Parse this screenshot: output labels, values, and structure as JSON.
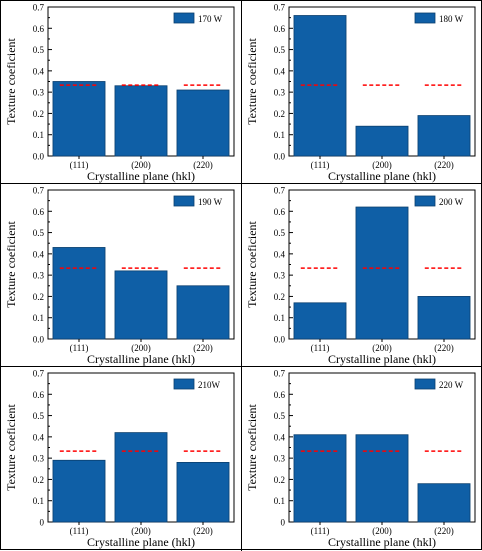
{
  "colors": {
    "bar": "#0f5fa6",
    "bar_edge": "#0a3f6e",
    "reference": "#ff0000"
  },
  "chart_data": [
    {
      "type": "bar",
      "categories": [
        "(111)",
        "(200)",
        "(220)"
      ],
      "values": [
        0.35,
        0.33,
        0.31
      ],
      "reference_value": 0.333,
      "legend": "170 W",
      "xlabel": "Crystalline plane (hkl)",
      "ylabel": "Texture coeficient",
      "ylim": [
        0,
        0.7
      ],
      "yticks": [
        "0.0",
        "0.1",
        "0.2",
        "0.3",
        "0.4",
        "0.5",
        "0.6",
        "0.7"
      ],
      "legend_position": "top-right"
    },
    {
      "type": "bar",
      "categories": [
        "(111)",
        "(200)",
        "(220)"
      ],
      "values": [
        0.66,
        0.14,
        0.19
      ],
      "reference_value": 0.333,
      "legend": "180 W",
      "xlabel": "Crystalline plane (hkl)",
      "ylabel": "Texture coeficient",
      "ylim": [
        0,
        0.7
      ],
      "yticks": [
        "0.0",
        "0.1",
        "0.2",
        "0.3",
        "0.4",
        "0.5",
        "0.6",
        "0.7"
      ],
      "legend_position": "top-right"
    },
    {
      "type": "bar",
      "categories": [
        "(111)",
        "(200)",
        "(220)"
      ],
      "values": [
        0.43,
        0.32,
        0.25
      ],
      "reference_value": 0.333,
      "legend": "190 W",
      "xlabel": "Crystalline plane (hkl)",
      "ylabel": "Texture coeficient",
      "ylim": [
        0,
        0.7
      ],
      "yticks": [
        "0.0",
        "0.1",
        "0.2",
        "0.3",
        "0.4",
        "0.5",
        "0.6",
        "0.7"
      ],
      "legend_position": "top-right"
    },
    {
      "type": "bar",
      "categories": [
        "(111)",
        "(200)",
        "(220)"
      ],
      "values": [
        0.17,
        0.62,
        0.2
      ],
      "reference_value": 0.333,
      "legend": "200 W",
      "xlabel": "Crystalline plane (hkl)",
      "ylabel": "Texture coeficient",
      "ylim": [
        0,
        0.7
      ],
      "yticks": [
        "0.0",
        "0.1",
        "0.2",
        "0.3",
        "0.4",
        "0.5",
        "0.6",
        "0.7"
      ],
      "legend_position": "top-right"
    },
    {
      "type": "bar",
      "categories": [
        "(111)",
        "(200)",
        "(220)"
      ],
      "values": [
        0.29,
        0.42,
        0.28
      ],
      "reference_value": 0.333,
      "legend": "210W",
      "xlabel": "Crystalline plane (hkl)",
      "ylabel": "Texture coeficient",
      "ylim": [
        0,
        0.7
      ],
      "yticks": [
        "0",
        "0.1",
        "0.2",
        "0.3",
        "0.4",
        "0.5",
        "0.6",
        "0.7"
      ],
      "legend_position": "top-right"
    },
    {
      "type": "bar",
      "categories": [
        "(111)",
        "(200)",
        "(220)"
      ],
      "values": [
        0.41,
        0.41,
        0.18
      ],
      "reference_value": 0.333,
      "legend": "220 W",
      "xlabel": "Crystalline plane (hkl)",
      "ylabel": "Texture coeficient",
      "ylim": [
        0,
        0.7
      ],
      "yticks": [
        "0",
        "0.1",
        "0.2",
        "0.3",
        "0.4",
        "0.5",
        "0.6",
        "0.7"
      ],
      "legend_position": "top-right"
    }
  ]
}
